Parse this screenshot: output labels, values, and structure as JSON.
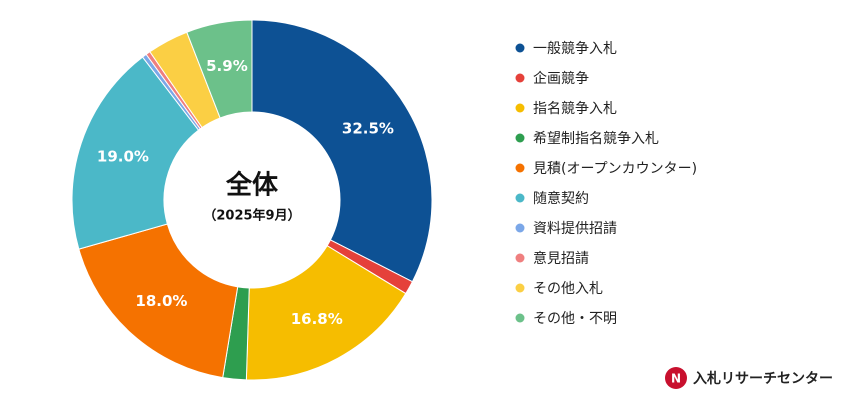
{
  "chart_data": {
    "type": "pie",
    "title": "全体",
    "subtitle": "（2025年9月）",
    "categories": [
      "一般競争入札",
      "企画競争",
      "指名競争入札",
      "希望制指名競争入札",
      "見積(オープンカウンター)",
      "随意契約",
      "資料提供招請",
      "意見招請",
      "その他入札",
      "その他・不明"
    ],
    "series": [
      {
        "colors": [
          "#0d5194",
          "#e5413a",
          "#f6bd00",
          "#2e9e4f",
          "#f57200",
          "#4bb8c8",
          "#7ba7e8",
          "#ef7f7f",
          "#fbcf44",
          "#6cc18a"
        ],
        "values": [
          32.5,
          1.2,
          16.8,
          2.1,
          18.0,
          19.0,
          0.4,
          0.4,
          3.7,
          5.9
        ],
        "value_labels": [
          "32.5%",
          null,
          "16.8%",
          null,
          "18.0%",
          "19.0%",
          null,
          null,
          null,
          "5.9%"
        ]
      }
    ]
  },
  "brand": "入札リサーチセンター"
}
